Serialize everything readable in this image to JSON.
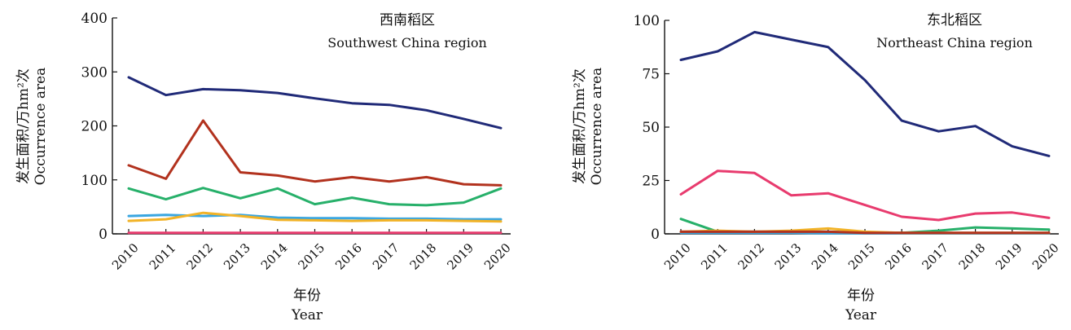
{
  "chart_data": [
    {
      "type": "line",
      "title": "西南稻区",
      "subtitle": "Southwest China region",
      "ylabel": "发生面积/万hm²次",
      "ylabel_en": "Occurrence area",
      "xlabel": "年份",
      "xlabel_en": "Year",
      "categories": [
        "2010",
        "2011",
        "2012",
        "2013",
        "2014",
        "2015",
        "2016",
        "2017",
        "2018",
        "2019",
        "2020"
      ],
      "ylim": [
        0,
        400
      ],
      "yticks": [
        "0",
        "100",
        "200",
        "300",
        "400"
      ],
      "grid": false,
      "series": [
        {
          "color": "#202a78",
          "values": [
            290,
            257,
            268,
            266,
            261,
            251,
            242,
            239,
            229,
            213,
            196
          ]
        },
        {
          "color": "#b2321e",
          "values": [
            127,
            102,
            210,
            114,
            108,
            97,
            105,
            97,
            105,
            92,
            90
          ]
        },
        {
          "color": "#27b06a",
          "values": [
            84,
            64,
            85,
            66,
            84,
            55,
            67,
            55,
            53,
            58,
            84
          ]
        },
        {
          "color": "#3aa6e0",
          "values": [
            33,
            35,
            33,
            35,
            30,
            29,
            29,
            28,
            28,
            27,
            27
          ]
        },
        {
          "color": "#f2b327",
          "values": [
            24,
            27,
            39,
            33,
            26,
            25,
            24,
            25,
            25,
            24,
            23
          ]
        },
        {
          "color": "#e83b6e",
          "values": [
            2,
            2,
            2,
            2,
            2,
            2,
            2,
            2,
            2,
            2,
            2
          ]
        }
      ]
    },
    {
      "type": "line",
      "title": "东北稻区",
      "subtitle": "Northeast China region",
      "ylabel": "发生面积/万hm²次",
      "ylabel_en": "Occurrence area",
      "xlabel": "年份",
      "xlabel_en": "Year",
      "categories": [
        "2010",
        "2011",
        "2012",
        "2013",
        "2014",
        "2015",
        "2016",
        "2017",
        "2018",
        "2019",
        "2020"
      ],
      "ylim": [
        0,
        100
      ],
      "yticks": [
        "0",
        "25",
        "50",
        "75",
        "100"
      ],
      "grid": false,
      "series": [
        {
          "color": "#202a78",
          "values": [
            81.5,
            85.5,
            94.5,
            91,
            87.5,
            72,
            53,
            48,
            50.5,
            41,
            36.5
          ]
        },
        {
          "color": "#e83b6e",
          "values": [
            18.5,
            29.5,
            28.5,
            18,
            19,
            13.5,
            8,
            6.5,
            9.5,
            10,
            7.5
          ]
        },
        {
          "color": "#27b06a",
          "values": [
            7,
            1,
            1,
            1,
            1,
            0.5,
            0.5,
            1.5,
            3,
            2.5,
            2
          ]
        },
        {
          "color": "#3aa6e0",
          "values": [
            0.5,
            0.5,
            0.5,
            0.5,
            0.3,
            0.3,
            0.3,
            0.3,
            0.3,
            0.3,
            0.3
          ]
        },
        {
          "color": "#f2b327",
          "values": [
            1,
            1.5,
            1,
            1.5,
            2.5,
            1,
            0.5,
            0.5,
            0.5,
            0.5,
            0.5
          ]
        },
        {
          "color": "#b2321e",
          "values": [
            1,
            1,
            1,
            1,
            1,
            0.5,
            0.5,
            0.5,
            0.5,
            0.5,
            0.5
          ]
        }
      ]
    }
  ]
}
